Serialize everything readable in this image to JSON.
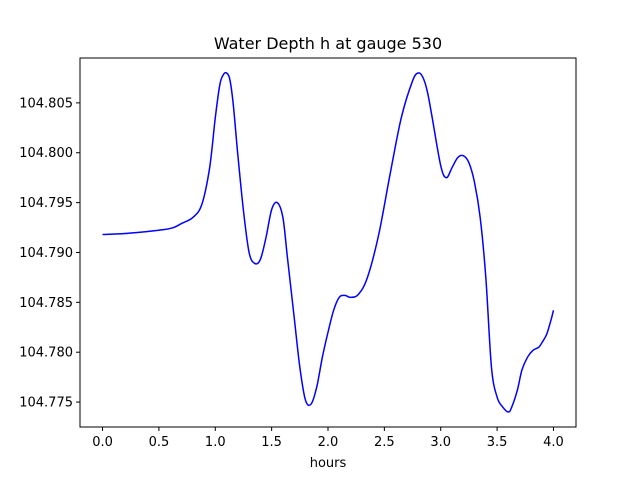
{
  "chart_data": {
    "type": "line",
    "title": "Water Depth h at gauge 530",
    "xlabel": "hours",
    "ylabel": "",
    "xlim": [
      -0.2,
      4.2
    ],
    "ylim": [
      104.7725,
      104.8095
    ],
    "grid": false,
    "colors": {
      "line": "#0000ff",
      "axes": "#000000",
      "background": "#ffffff"
    },
    "x_ticks": [
      0.0,
      0.5,
      1.0,
      1.5,
      2.0,
      2.5,
      3.0,
      3.5,
      4.0
    ],
    "x_tick_labels": [
      "0.0",
      "0.5",
      "1.0",
      "1.5",
      "2.0",
      "2.5",
      "3.0",
      "3.5",
      "4.0"
    ],
    "y_ticks": [
      104.775,
      104.78,
      104.785,
      104.79,
      104.795,
      104.8,
      104.805
    ],
    "y_tick_labels": [
      "104.775",
      "104.780",
      "104.785",
      "104.790",
      "104.795",
      "104.800",
      "104.805"
    ],
    "series": [
      {
        "x": [
          0.0,
          0.2,
          0.4,
          0.55,
          0.63,
          0.7,
          0.8,
          0.88,
          0.95,
          1.0,
          1.04,
          1.07,
          1.1,
          1.13,
          1.16,
          1.2,
          1.25,
          1.3,
          1.35,
          1.4,
          1.45,
          1.5,
          1.55,
          1.6,
          1.64,
          1.7,
          1.75,
          1.8,
          1.85,
          1.9,
          1.95,
          2.0,
          2.05,
          2.1,
          2.15,
          2.2,
          2.27,
          2.35,
          2.45,
          2.55,
          2.65,
          2.75,
          2.8,
          2.84,
          2.88,
          2.92,
          3.0,
          3.05,
          3.1,
          3.15,
          3.2,
          3.25,
          3.3,
          3.35,
          3.4,
          3.45,
          3.5,
          3.55,
          3.6,
          3.63,
          3.68,
          3.72,
          3.77,
          3.82,
          3.87,
          3.9,
          3.94,
          3.98,
          4.0
        ],
        "y": [
          104.7918,
          104.7919,
          104.7921,
          104.7923,
          104.7925,
          104.7929,
          104.7935,
          104.7948,
          104.7985,
          104.8035,
          104.8068,
          104.8078,
          104.808,
          104.8073,
          104.8048,
          104.7998,
          104.7942,
          104.79,
          104.7889,
          104.7893,
          104.7915,
          104.7943,
          104.795,
          104.7935,
          104.7895,
          104.7835,
          104.7785,
          104.7752,
          104.7748,
          104.7765,
          104.7795,
          104.782,
          104.7842,
          104.7855,
          104.7857,
          104.7855,
          104.7858,
          104.7875,
          104.7918,
          104.7978,
          104.8035,
          104.8072,
          104.808,
          104.8076,
          104.8062,
          104.8038,
          104.7987,
          104.7975,
          104.7985,
          104.7995,
          104.7997,
          104.799,
          104.797,
          104.7935,
          104.7875,
          104.7785,
          104.7755,
          104.7745,
          104.774,
          104.7745,
          104.7762,
          104.7782,
          104.7795,
          104.7802,
          104.7805,
          104.781,
          104.7818,
          104.7833,
          104.7842
        ]
      }
    ]
  }
}
